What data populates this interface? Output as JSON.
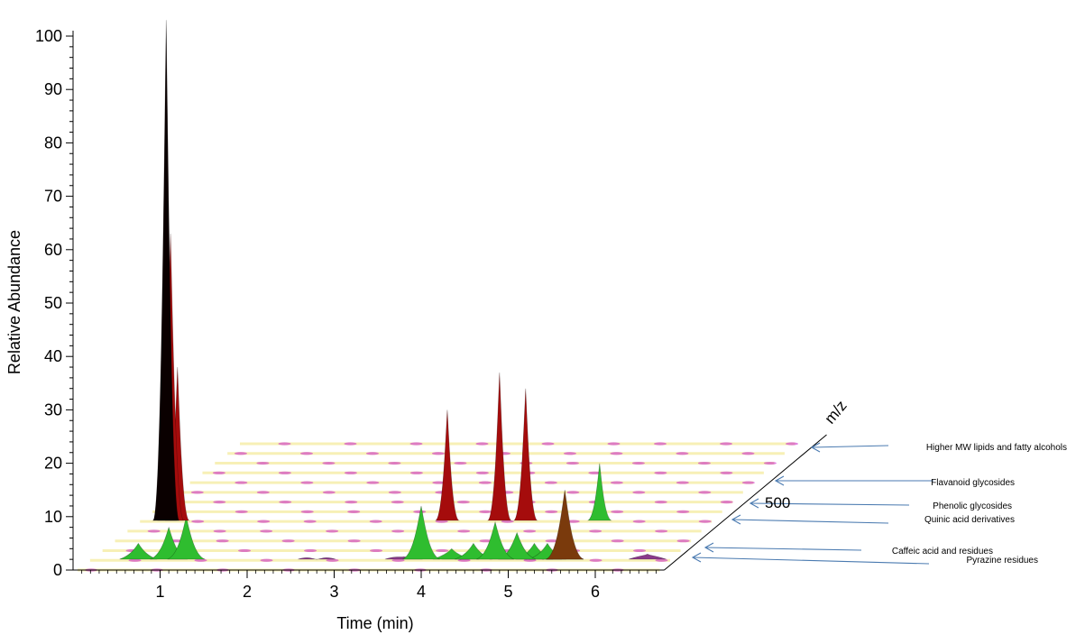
{
  "chart_data": {
    "type": "area",
    "xlabel": "Time (min)",
    "ylabel": "Relative Abundance",
    "zlabel": "m/z",
    "xlim": [
      0,
      7
    ],
    "ylim": [
      0,
      100
    ],
    "x_ticks": [
      1,
      2,
      3,
      4,
      5,
      6
    ],
    "y_ticks": [
      0,
      10,
      20,
      30,
      40,
      50,
      60,
      70,
      80,
      90,
      100
    ],
    "z_tick": "500",
    "colors": {
      "red": "#a50c0c",
      "green": "#2fbd2f",
      "purple": "#8a3a8a",
      "magenta": "#c81ec8",
      "brown": "#7a3a0c",
      "yellow": "#f6eeaa",
      "arrow": "#4a7ab0"
    },
    "annotations": [
      {
        "label": "Higher MW lipids and fatty alcohols"
      },
      {
        "label": "Flavanoid glycosides"
      },
      {
        "label": "Phenolic glycosides"
      },
      {
        "label": "Quinic acid  derivatives"
      },
      {
        "label": "Caffeic acid and  residues"
      },
      {
        "label": "Pyrazine  residues"
      }
    ],
    "peaks": [
      {
        "time": 1.07,
        "abundance": 103,
        "color": "black"
      },
      {
        "time": 1.12,
        "abundance": 63,
        "color": "red"
      },
      {
        "time": 1.2,
        "abundance": 38,
        "color": "red"
      },
      {
        "time": 1.05,
        "abundance": 18,
        "color": "red"
      },
      {
        "time": 0.75,
        "abundance": 5,
        "color": "green"
      },
      {
        "time": 1.1,
        "abundance": 8,
        "color": "green"
      },
      {
        "time": 1.3,
        "abundance": 10,
        "color": "green"
      },
      {
        "time": 4.3,
        "abundance": 30,
        "color": "red"
      },
      {
        "time": 4.9,
        "abundance": 37,
        "color": "red"
      },
      {
        "time": 5.2,
        "abundance": 34,
        "color": "red"
      },
      {
        "time": 5.65,
        "abundance": 15,
        "color": "brown"
      },
      {
        "time": 6.05,
        "abundance": 20,
        "color": "green"
      },
      {
        "time": 4.0,
        "abundance": 12,
        "color": "green"
      },
      {
        "time": 4.35,
        "abundance": 4,
        "color": "green"
      },
      {
        "time": 4.85,
        "abundance": 9,
        "color": "green"
      },
      {
        "time": 4.6,
        "abundance": 5,
        "color": "green"
      },
      {
        "time": 5.1,
        "abundance": 7,
        "color": "green"
      },
      {
        "time": 5.3,
        "abundance": 5,
        "color": "green"
      },
      {
        "time": 5.45,
        "abundance": 5,
        "color": "green"
      },
      {
        "time": 5.65,
        "abundance": 5,
        "color": "green"
      },
      {
        "time": 3.8,
        "abundance": 2.5,
        "color": "purple"
      },
      {
        "time": 2.8,
        "abundance": 2,
        "color": "purple"
      },
      {
        "time": 5.0,
        "abundance": 3,
        "color": "purple"
      },
      {
        "time": 5.65,
        "abundance": 3,
        "color": "purple"
      },
      {
        "time": 6.6,
        "abundance": 3,
        "color": "purple"
      },
      {
        "time": 4.45,
        "abundance": 2,
        "color": "purple"
      },
      {
        "time": 5.4,
        "abundance": 2,
        "color": "purple"
      }
    ]
  }
}
